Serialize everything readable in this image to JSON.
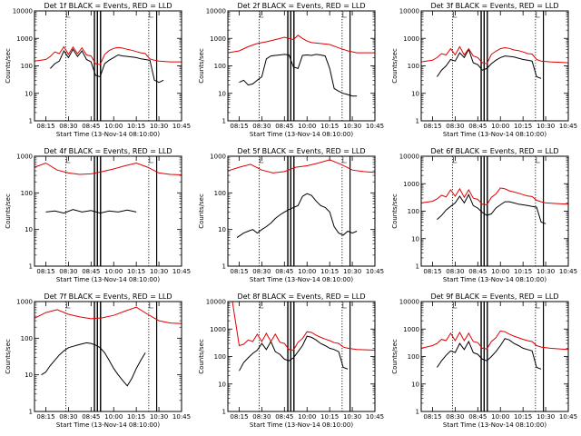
{
  "figure": {
    "title_template": "BLACK = Events, RED = LLD",
    "ylabel": "Counts/sec",
    "xlabel": "Start Time (13-Nov-14 08:10:00)",
    "xticks": [
      "08:15",
      "08:30",
      "08:45",
      "10:00",
      "10:15",
      "10:30",
      "10:45"
    ],
    "yticks": [
      "1",
      "10",
      "100",
      "1000",
      "10000"
    ]
  },
  "chart_data": [
    {
      "type": "line",
      "title": "Det 1f BLACK = Events, RED = LLD",
      "xlabel": "Start Time (13-Nov-14 08:10:00)",
      "ylabel": "Counts/sec",
      "yscale": "log",
      "ylim": [
        1,
        10000
      ],
      "series": [
        {
          "name": "Events",
          "color": "#000000",
          "x": [
            0.2,
            0.4,
            0.6,
            0.8,
            1.0,
            1.2,
            1.4,
            1.6,
            1.8,
            2.0,
            2.2,
            2.4,
            2.6,
            2.8,
            3.0,
            3.2,
            3.4,
            3.6,
            3.8,
            4.0,
            4.2,
            4.4,
            4.6,
            4.8,
            5.0,
            5.2,
            5.4,
            5.6
          ],
          "y": [
            80,
            120,
            150,
            350,
            200,
            400,
            220,
            350,
            170,
            140,
            45,
            40,
            120,
            160,
            200,
            250,
            230,
            220,
            210,
            200,
            180,
            170,
            160,
            30,
            25,
            30,
            null,
            null
          ]
        },
        {
          "name": "LLD",
          "color": "#e00000",
          "x": [
            -0.5,
            0.0,
            0.2,
            0.4,
            0.6,
            0.8,
            1.0,
            1.2,
            1.4,
            1.6,
            1.8,
            2.0,
            2.2,
            2.4,
            2.6,
            2.8,
            3.0,
            3.2,
            3.4,
            3.6,
            3.8,
            4.0,
            4.2,
            4.4,
            4.6,
            4.8,
            5.0,
            5.2,
            5.5,
            6.0
          ],
          "y": [
            150,
            170,
            220,
            320,
            280,
            500,
            260,
            480,
            280,
            450,
            250,
            230,
            120,
            110,
            260,
            360,
            430,
            470,
            440,
            400,
            370,
            330,
            300,
            280,
            180,
            160,
            150,
            145,
            140,
            140
          ]
        }
      ]
    },
    {
      "type": "line",
      "title": "Det 2f BLACK = Events, RED = LLD",
      "xlabel": "Start Time (13-Nov-14 08:10:00)",
      "ylabel": "Counts/sec",
      "yscale": "log",
      "ylim": [
        1,
        10000
      ],
      "series": [
        {
          "name": "Events",
          "color": "#000000",
          "x": [
            0.0,
            0.2,
            0.4,
            0.6,
            0.8,
            1.0,
            1.2,
            1.4,
            1.6,
            1.8,
            2.0,
            2.2,
            2.4,
            2.6,
            2.8,
            3.0,
            3.2,
            3.4,
            3.6,
            3.8,
            4.0,
            4.2,
            4.4,
            4.6,
            4.8,
            5.0,
            5.2
          ],
          "y": [
            25,
            30,
            20,
            22,
            30,
            40,
            180,
            230,
            240,
            250,
            260,
            250,
            90,
            80,
            240,
            250,
            240,
            260,
            250,
            230,
            80,
            15,
            12,
            10,
            9,
            8,
            8
          ]
        },
        {
          "name": "LLD",
          "color": "#e00000",
          "x": [
            -0.5,
            0.0,
            0.4,
            0.8,
            1.2,
            1.6,
            2.0,
            2.4,
            2.6,
            2.8,
            3.0,
            3.2,
            3.6,
            4.0,
            4.4,
            4.8,
            5.2,
            5.6,
            6.0
          ],
          "y": [
            300,
            350,
            500,
            650,
            750,
            900,
            1100,
            900,
            1300,
            1000,
            800,
            700,
            650,
            600,
            450,
            350,
            300,
            300,
            300
          ]
        }
      ]
    },
    {
      "type": "line",
      "title": "Det 3f BLACK = Events, RED = LLD",
      "xlabel": "Start Time (13-Nov-14 08:10:00)",
      "ylabel": "Counts/sec",
      "yscale": "log",
      "ylim": [
        1,
        10000
      ],
      "series": [
        {
          "name": "Events",
          "color": "#000000",
          "x": [
            0.2,
            0.4,
            0.6,
            0.8,
            1.0,
            1.2,
            1.4,
            1.6,
            1.8,
            2.0,
            2.2,
            2.4,
            2.6,
            2.8,
            3.0,
            3.2,
            3.4,
            3.6,
            3.8,
            4.0,
            4.2,
            4.4,
            4.6,
            4.8
          ],
          "y": [
            40,
            70,
            100,
            170,
            150,
            300,
            200,
            400,
            130,
            110,
            70,
            80,
            120,
            160,
            200,
            230,
            220,
            210,
            190,
            170,
            160,
            150,
            40,
            35
          ]
        },
        {
          "name": "LLD",
          "color": "#e00000",
          "x": [
            -0.5,
            0.0,
            0.2,
            0.4,
            0.6,
            0.8,
            1.0,
            1.2,
            1.4,
            1.6,
            1.8,
            2.0,
            2.2,
            2.4,
            2.6,
            2.8,
            3.0,
            3.2,
            3.4,
            3.6,
            3.8,
            4.0,
            4.2,
            4.4,
            4.6,
            4.8,
            5.2,
            5.6,
            6.0
          ],
          "y": [
            140,
            160,
            200,
            280,
            250,
            420,
            250,
            500,
            250,
            420,
            230,
            200,
            130,
            120,
            260,
            340,
            420,
            460,
            430,
            380,
            360,
            320,
            280,
            270,
            170,
            150,
            140,
            135,
            130
          ]
        }
      ]
    },
    {
      "type": "line",
      "title": "Det 4f BLACK = Events, RED = LLD",
      "xlabel": "Start Time (13-Nov-14 08:10:00)",
      "ylabel": "Counts/sec",
      "yscale": "log",
      "ylim": [
        1,
        1000
      ],
      "series": [
        {
          "name": "Events",
          "color": "#000000",
          "x": [
            0.0,
            0.4,
            0.8,
            1.2,
            1.6,
            2.0,
            2.4,
            2.8,
            3.2,
            3.6,
            4.0
          ],
          "y": [
            30,
            32,
            28,
            35,
            30,
            33,
            28,
            32,
            30,
            34,
            30
          ]
        },
        {
          "name": "LLD",
          "color": "#e00000",
          "x": [
            -0.5,
            0.0,
            0.5,
            1.0,
            1.5,
            2.0,
            2.5,
            3.0,
            3.5,
            4.0,
            4.5,
            5.0,
            5.5,
            6.0
          ],
          "y": [
            500,
            650,
            420,
            350,
            320,
            330,
            380,
            450,
            550,
            650,
            500,
            350,
            320,
            310
          ]
        }
      ]
    },
    {
      "type": "line",
      "title": "Det 5f BLACK = Events, RED = LLD",
      "xlabel": "Start Time (13-Nov-14 08:10:00)",
      "ylabel": "Counts/sec",
      "yscale": "log",
      "ylim": [
        1,
        1000
      ],
      "series": [
        {
          "name": "Events",
          "color": "#000000",
          "x": [
            -0.1,
            0.2,
            0.4,
            0.6,
            0.8,
            1.0,
            1.2,
            1.4,
            1.6,
            1.8,
            2.0,
            2.2,
            2.4,
            2.6,
            2.8,
            3.0,
            3.2,
            3.4,
            3.6,
            3.8,
            4.0,
            4.2,
            4.4,
            4.6,
            4.8,
            5.0,
            5.2
          ],
          "y": [
            6,
            8,
            9,
            10,
            8,
            10,
            12,
            15,
            20,
            25,
            30,
            35,
            40,
            45,
            80,
            95,
            85,
            60,
            45,
            40,
            30,
            12,
            8,
            7,
            9,
            8,
            9
          ]
        },
        {
          "name": "LLD",
          "color": "#e00000",
          "x": [
            -0.5,
            0.0,
            0.5,
            1.0,
            1.5,
            2.0,
            2.5,
            3.0,
            3.5,
            4.0,
            4.5,
            5.0,
            5.5,
            6.0
          ],
          "y": [
            400,
            500,
            600,
            420,
            350,
            380,
            500,
            550,
            650,
            800,
            600,
            420,
            380,
            360
          ]
        }
      ]
    },
    {
      "type": "line",
      "title": "Det 6f BLACK = Events, RED = LLD",
      "xlabel": "Start Time (13-Nov-14 08:10:00)",
      "ylabel": "Counts/sec",
      "yscale": "log",
      "ylim": [
        1,
        10000
      ],
      "series": [
        {
          "name": "Events",
          "color": "#000000",
          "x": [
            0.2,
            0.4,
            0.6,
            0.8,
            1.0,
            1.2,
            1.4,
            1.6,
            1.8,
            2.0,
            2.2,
            2.4,
            2.6,
            2.8,
            3.0,
            3.2,
            3.4,
            3.6,
            3.8,
            4.0,
            4.2,
            4.4,
            4.6,
            4.8,
            5.0
          ],
          "y": [
            50,
            70,
            110,
            150,
            200,
            350,
            200,
            400,
            160,
            130,
            90,
            70,
            80,
            130,
            170,
            220,
            220,
            200,
            180,
            170,
            160,
            150,
            140,
            40,
            35
          ]
        },
        {
          "name": "LLD",
          "color": "#e00000",
          "x": [
            -0.5,
            0.0,
            0.2,
            0.4,
            0.6,
            0.8,
            1.0,
            1.2,
            1.4,
            1.6,
            1.8,
            2.0,
            2.2,
            2.4,
            2.6,
            2.8,
            3.0,
            3.2,
            3.4,
            3.6,
            3.8,
            4.0,
            4.2,
            4.4,
            4.6,
            4.8,
            5.0,
            5.5,
            6.0
          ],
          "y": [
            200,
            230,
            280,
            380,
            330,
            600,
            350,
            650,
            320,
            600,
            300,
            270,
            180,
            170,
            320,
            420,
            700,
            650,
            550,
            500,
            450,
            400,
            360,
            340,
            250,
            220,
            200,
            190,
            180
          ]
        }
      ]
    },
    {
      "type": "line",
      "title": "Det 7f BLACK = Events, RED = LLD",
      "xlabel": "Start Time (13-Nov-14 08:10:00)",
      "ylabel": "Counts/sec",
      "yscale": "log",
      "ylim": [
        1,
        1000
      ],
      "series": [
        {
          "name": "Events",
          "color": "#000000",
          "x": [
            -0.2,
            0.0,
            0.2,
            0.4,
            0.6,
            0.8,
            1.0,
            1.2,
            1.4,
            1.6,
            1.8,
            2.0,
            2.2,
            2.4,
            2.6,
            2.8,
            3.0,
            3.2,
            3.4,
            3.6,
            3.8,
            4.0,
            4.2,
            4.4
          ],
          "y": [
            10,
            12,
            18,
            25,
            35,
            45,
            55,
            60,
            65,
            70,
            75,
            72,
            65,
            55,
            40,
            25,
            15,
            10,
            7,
            5,
            8,
            15,
            25,
            40
          ]
        },
        {
          "name": "LLD",
          "color": "#e00000",
          "x": [
            -0.5,
            0.0,
            0.5,
            1.0,
            1.5,
            2.0,
            2.5,
            3.0,
            3.5,
            4.0,
            4.5,
            5.0,
            5.5,
            6.0
          ],
          "y": [
            350,
            500,
            600,
            450,
            380,
            340,
            360,
            420,
            550,
            700,
            450,
            300,
            260,
            250
          ]
        }
      ]
    },
    {
      "type": "line",
      "title": "Det 8f BLACK = Events, RED = LLD",
      "xlabel": "Start Time (13-Nov-14 08:10:00)",
      "ylabel": "Counts/sec",
      "yscale": "log",
      "ylim": [
        1,
        10000
      ],
      "series": [
        {
          "name": "Events",
          "color": "#000000",
          "x": [
            0.0,
            0.2,
            0.4,
            0.6,
            0.8,
            1.0,
            1.2,
            1.4,
            1.6,
            1.8,
            2.0,
            2.2,
            2.4,
            2.6,
            2.8,
            3.0,
            3.2,
            3.4,
            3.6,
            3.8,
            4.0,
            4.2,
            4.4,
            4.6,
            4.8
          ],
          "y": [
            30,
            60,
            90,
            130,
            170,
            300,
            180,
            350,
            150,
            120,
            80,
            70,
            90,
            150,
            250,
            550,
            500,
            400,
            300,
            250,
            200,
            180,
            150,
            40,
            35
          ]
        },
        {
          "name": "LLD",
          "color": "#e00000",
          "x": [
            -0.5,
            -0.3,
            0.0,
            0.2,
            0.4,
            0.6,
            0.8,
            1.0,
            1.2,
            1.4,
            1.6,
            1.8,
            2.0,
            2.2,
            2.4,
            2.6,
            2.8,
            3.0,
            3.2,
            3.4,
            3.6,
            3.8,
            4.0,
            4.2,
            4.4,
            4.6,
            4.8,
            5.2,
            6.0
          ],
          "y": [
            10000,
            10000,
            250,
            280,
            400,
            350,
            650,
            350,
            700,
            350,
            650,
            330,
            300,
            180,
            170,
            330,
            450,
            800,
            750,
            600,
            500,
            430,
            380,
            320,
            300,
            220,
            200,
            180,
            170
          ]
        }
      ]
    },
    {
      "type": "line",
      "title": "Det 9f BLACK = Events, RED = LLD",
      "xlabel": "Start Time (13-Nov-14 08:10:00)",
      "ylabel": "Counts/sec",
      "yscale": "log",
      "ylim": [
        1,
        10000
      ],
      "series": [
        {
          "name": "Events",
          "color": "#000000",
          "x": [
            0.2,
            0.4,
            0.6,
            0.8,
            1.0,
            1.2,
            1.4,
            1.6,
            1.8,
            2.0,
            2.2,
            2.4,
            2.6,
            2.8,
            3.0,
            3.2,
            3.4,
            3.6,
            3.8,
            4.0,
            4.2,
            4.4,
            4.6,
            4.8
          ],
          "y": [
            40,
            70,
            110,
            160,
            140,
            300,
            180,
            350,
            140,
            120,
            80,
            70,
            100,
            150,
            250,
            450,
            400,
            300,
            250,
            200,
            180,
            160,
            40,
            35
          ]
        },
        {
          "name": "LLD",
          "color": "#e00000",
          "x": [
            -0.5,
            0.0,
            0.2,
            0.4,
            0.6,
            0.8,
            1.0,
            1.2,
            1.4,
            1.6,
            1.8,
            2.0,
            2.2,
            2.4,
            2.6,
            2.8,
            3.0,
            3.2,
            3.4,
            3.6,
            3.8,
            4.0,
            4.2,
            4.4,
            4.6,
            4.8,
            5.2,
            5.6,
            6.0
          ],
          "y": [
            200,
            250,
            300,
            420,
            380,
            700,
            380,
            750,
            380,
            700,
            350,
            320,
            200,
            190,
            350,
            480,
            850,
            800,
            650,
            550,
            480,
            420,
            380,
            350,
            250,
            220,
            200,
            190,
            180
          ]
        }
      ]
    }
  ]
}
